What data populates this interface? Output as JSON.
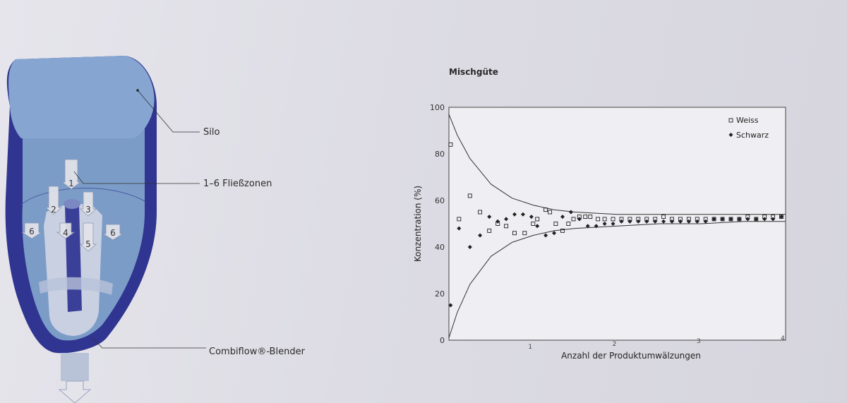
{
  "diagram": {
    "labels": {
      "silo": "Silo",
      "zones": "1–6 Fließzonen",
      "blender": "Combiflow®-Blender"
    },
    "zone_numbers": [
      "1",
      "2",
      "3",
      "4",
      "5",
      "6",
      "6"
    ],
    "colors": {
      "silo_outer": "#2f3590",
      "silo_inner": "#7c9cc8",
      "silo_top": "#86a6d1",
      "blender": "#c8d0e2",
      "arrow": "#e4e4ea"
    }
  },
  "chart_data": {
    "type": "scatter",
    "title": "Mischgüte",
    "xlabel": "Anzahl der Produktumwälzungen",
    "ylabel": "Konzentration (%)",
    "xlim": [
      0,
      4
    ],
    "ylim": [
      0,
      100
    ],
    "x_ticks": [
      "1",
      "2",
      "3",
      "4"
    ],
    "y_ticks": [
      "0",
      "20",
      "40",
      "60",
      "80",
      "100"
    ],
    "legend": {
      "placement": "top-right"
    },
    "series": [
      {
        "name": "Weiss",
        "marker": "square",
        "x": [
          0.02,
          0.12,
          0.25,
          0.37,
          0.48,
          0.58,
          0.68,
          0.78,
          0.9,
          1.0,
          1.05,
          1.15,
          1.2,
          1.27,
          1.35,
          1.42,
          1.48,
          1.55,
          1.62,
          1.68,
          1.77,
          1.85,
          1.95,
          2.05,
          2.15,
          2.25,
          2.35,
          2.45,
          2.55,
          2.65,
          2.75,
          2.85,
          2.95,
          3.05,
          3.15,
          3.25,
          3.35,
          3.45,
          3.55,
          3.65,
          3.75,
          3.85,
          3.95
        ],
        "y": [
          84,
          52,
          62,
          55,
          47,
          50,
          49,
          46,
          46,
          50,
          52,
          56,
          55,
          50,
          47,
          50,
          52,
          53,
          53,
          53,
          52,
          52,
          52,
          52,
          52,
          52,
          52,
          52,
          53,
          52,
          52,
          52,
          52,
          52,
          52,
          52,
          52,
          52,
          53,
          52,
          53,
          53,
          53
        ]
      },
      {
        "name": "Schwarz",
        "marker": "diamond",
        "x": [
          0.02,
          0.12,
          0.25,
          0.37,
          0.48,
          0.58,
          0.68,
          0.78,
          0.88,
          0.98,
          1.05,
          1.15,
          1.25,
          1.35,
          1.45,
          1.55,
          1.65,
          1.75,
          1.85,
          1.95,
          2.05,
          2.15,
          2.25,
          2.35,
          2.45,
          2.55,
          2.65,
          2.75,
          2.85,
          2.95,
          3.05,
          3.15,
          3.25,
          3.35,
          3.45,
          3.55,
          3.65,
          3.75,
          3.85,
          3.95
        ],
        "y": [
          15,
          48,
          40,
          45,
          53,
          51,
          52,
          54,
          54,
          53,
          49,
          45,
          46,
          53,
          55,
          52,
          49,
          49,
          50,
          50,
          51,
          51,
          51,
          51,
          51,
          51,
          51,
          51,
          51,
          51,
          51,
          52,
          52,
          52,
          52,
          52,
          52,
          52,
          52,
          53
        ]
      }
    ],
    "envelope": {
      "upper": {
        "x": [
          0,
          0.1,
          0.25,
          0.5,
          0.75,
          1,
          1.25,
          1.5,
          2,
          2.5,
          3,
          3.5,
          4
        ],
        "y": [
          97,
          88,
          78,
          67,
          61,
          58,
          56,
          55,
          54,
          54,
          54,
          54,
          54
        ]
      },
      "lower": {
        "x": [
          0,
          0.1,
          0.25,
          0.5,
          0.75,
          1,
          1.25,
          1.5,
          2,
          2.5,
          3,
          3.5,
          4
        ],
        "y": [
          1,
          12,
          24,
          36,
          42,
          45,
          47,
          48,
          49,
          50,
          50,
          51,
          51
        ]
      }
    }
  }
}
